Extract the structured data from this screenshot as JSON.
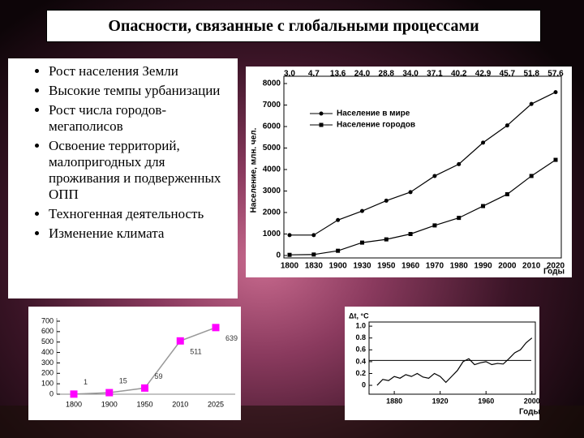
{
  "title": "Опасности, связанные с глобальными процессами",
  "bullets": [
    "Рост населения Земли",
    "Высокие темпы урбанизации",
    "Рост числа городов-мегаполисов",
    "Освоение территорий, малопригодных для проживания и подверженных ОПП",
    "Техногенная деятельность",
    "Изменение климата"
  ],
  "chart_data": [
    {
      "type": "line",
      "ylabel": "Население, млн. чел.",
      "xlabel": "Годы",
      "categories": [
        "1800",
        "1830",
        "1900",
        "1930",
        "1950",
        "1960",
        "1970",
        "1980",
        "1990",
        "2000",
        "2010",
        "2020"
      ],
      "annotations": [
        "3.0",
        "4.7",
        "13.6",
        "24.0",
        "28.8",
        "34.0",
        "37.1",
        "40.2",
        "42.9",
        "45.7",
        "51.8",
        "57.6"
      ],
      "series": [
        {
          "name": "Население в мире",
          "color": "#000000",
          "marker": "circle",
          "values": [
            950,
            950,
            1650,
            2070,
            2550,
            2950,
            3700,
            4250,
            5250,
            6050,
            7050,
            7600
          ]
        },
        {
          "name": "Население городов",
          "color": "#000000",
          "marker": "square",
          "values": [
            30,
            45,
            220,
            600,
            750,
            1000,
            1400,
            1750,
            2300,
            2850,
            3700,
            4450
          ]
        }
      ],
      "ylim": [
        0,
        8000
      ],
      "yticks": [
        0,
        1000,
        2000,
        3000,
        4000,
        5000,
        6000,
        7000,
        8000
      ]
    },
    {
      "type": "line",
      "categories": [
        "1800",
        "1900",
        "1950",
        "2010",
        "2025"
      ],
      "series": [
        {
          "color": "#ff00ff",
          "line_color": "#999999",
          "marker": "square",
          "values": [
            1,
            15,
            59,
            511,
            639
          ]
        }
      ],
      "ylim": [
        0,
        700
      ],
      "yticks": [
        0,
        100,
        200,
        300,
        400,
        500,
        600,
        700
      ]
    },
    {
      "type": "line",
      "ylabel": "Δt, °C",
      "xlabel": "Годы",
      "x": [
        1865,
        1870,
        1875,
        1880,
        1885,
        1890,
        1895,
        1900,
        1905,
        1910,
        1915,
        1920,
        1925,
        1930,
        1935,
        1940,
        1945,
        1950,
        1955,
        1960,
        1965,
        1970,
        1975,
        1980,
        1985,
        1990,
        1995,
        2000
      ],
      "series": [
        {
          "color": "#000000",
          "values": [
            0.0,
            0.1,
            0.08,
            0.15,
            0.12,
            0.18,
            0.15,
            0.2,
            0.14,
            0.12,
            0.2,
            0.15,
            0.05,
            0.15,
            0.25,
            0.4,
            0.45,
            0.35,
            0.38,
            0.4,
            0.35,
            0.37,
            0.36,
            0.45,
            0.55,
            0.6,
            0.72,
            0.8
          ]
        }
      ],
      "reference_line": 0.42,
      "xlim": [
        1858,
        2003
      ],
      "xticks": [
        1880,
        1920,
        1960,
        2000
      ],
      "ylim": [
        -0.15,
        1.07
      ],
      "yticks": [
        {
          "value": 0,
          "label": "0"
        },
        0.2,
        0.4,
        0.6,
        0.8,
        {
          "value": 1.0,
          "label": "1.0"
        }
      ]
    }
  ]
}
